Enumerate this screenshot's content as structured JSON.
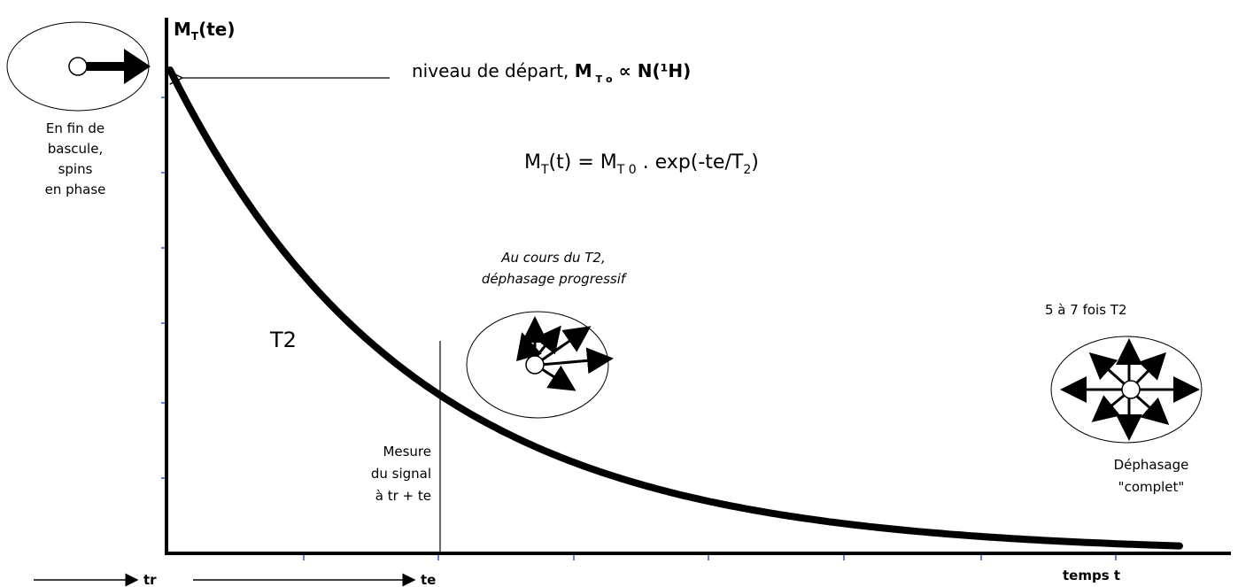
{
  "y_axis_label": [
    "M",
    "T",
    "(te)"
  ],
  "start_level": [
    "niveau de départ, ",
    "M",
    "T o",
    " ∝ N(¹H)"
  ],
  "formula": [
    "M",
    "T",
    "(t) = M",
    "T 0",
    " . exp(-te/T",
    "2",
    ")"
  ],
  "start_state": [
    "En fin de",
    "bascule,",
    "spins",
    "en phase"
  ],
  "progressive": [
    "Au cours du T2,",
    "déphasage progressif"
  ],
  "curve_label": "T2",
  "duration": "5 à 7 fois T2",
  "measure": [
    "Mesure",
    "du signal",
    "à tr + te"
  ],
  "end_state": [
    "Déphasage",
    "\"complet\""
  ],
  "x_labels": {
    "tr": "tr",
    "te": "te",
    "time": "temps t"
  }
}
